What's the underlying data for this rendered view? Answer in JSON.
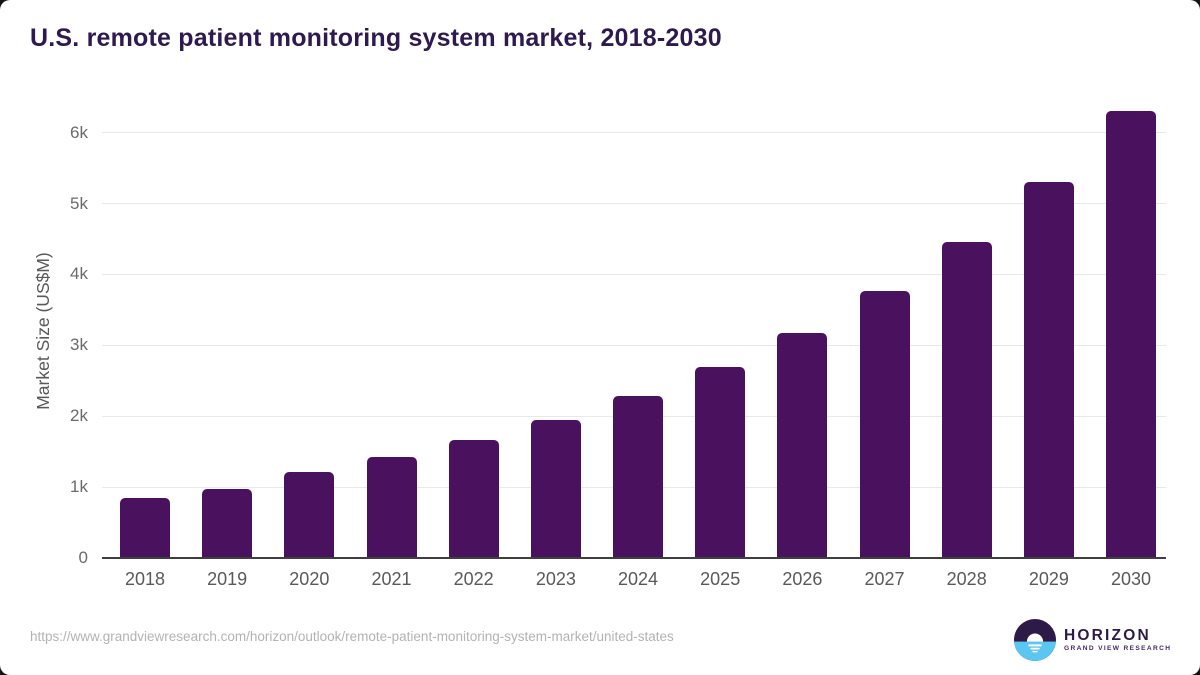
{
  "header": {
    "title": "U.S. remote patient monitoring system market, 2018-2030"
  },
  "chart_data": {
    "type": "bar",
    "title": "U.S. remote patient monitoring system market, 2018-2030",
    "categories": [
      "2018",
      "2019",
      "2020",
      "2021",
      "2022",
      "2023",
      "2024",
      "2025",
      "2026",
      "2027",
      "2028",
      "2029",
      "2030"
    ],
    "values": [
      840,
      975,
      1210,
      1430,
      1660,
      1950,
      2280,
      2690,
      3180,
      3760,
      4460,
      5300,
      6300
    ],
    "unit": "US$M",
    "xlabel": "",
    "ylabel": "Market Size (US$M)",
    "ylim": [
      0,
      6500
    ],
    "ytick_interval": 1000,
    "yticks": [
      "0",
      "1k",
      "2k",
      "3k",
      "4k",
      "5k",
      "6k"
    ],
    "grid": true,
    "legend": false,
    "bar_color": "#4a115e"
  },
  "footer": {
    "source_url": "https://www.grandviewresearch.com/horizon/outlook/remote-patient-monitoring-system-market/united-states"
  },
  "logo": {
    "brand": "HORIZON",
    "sub_brand": "GRAND VIEW RESEARCH"
  },
  "colors": {
    "bar": "#4a115e",
    "title_text": "#2e1a4e",
    "axis_text": "#58595b",
    "tick_text": "#6b6b6b",
    "gridline": "#e8e8e8",
    "axis_line": "#3f3f3f",
    "footer_text": "#b3b3b3",
    "logo_purple": "#2e1a47",
    "logo_blue": "#5bc6f0"
  }
}
